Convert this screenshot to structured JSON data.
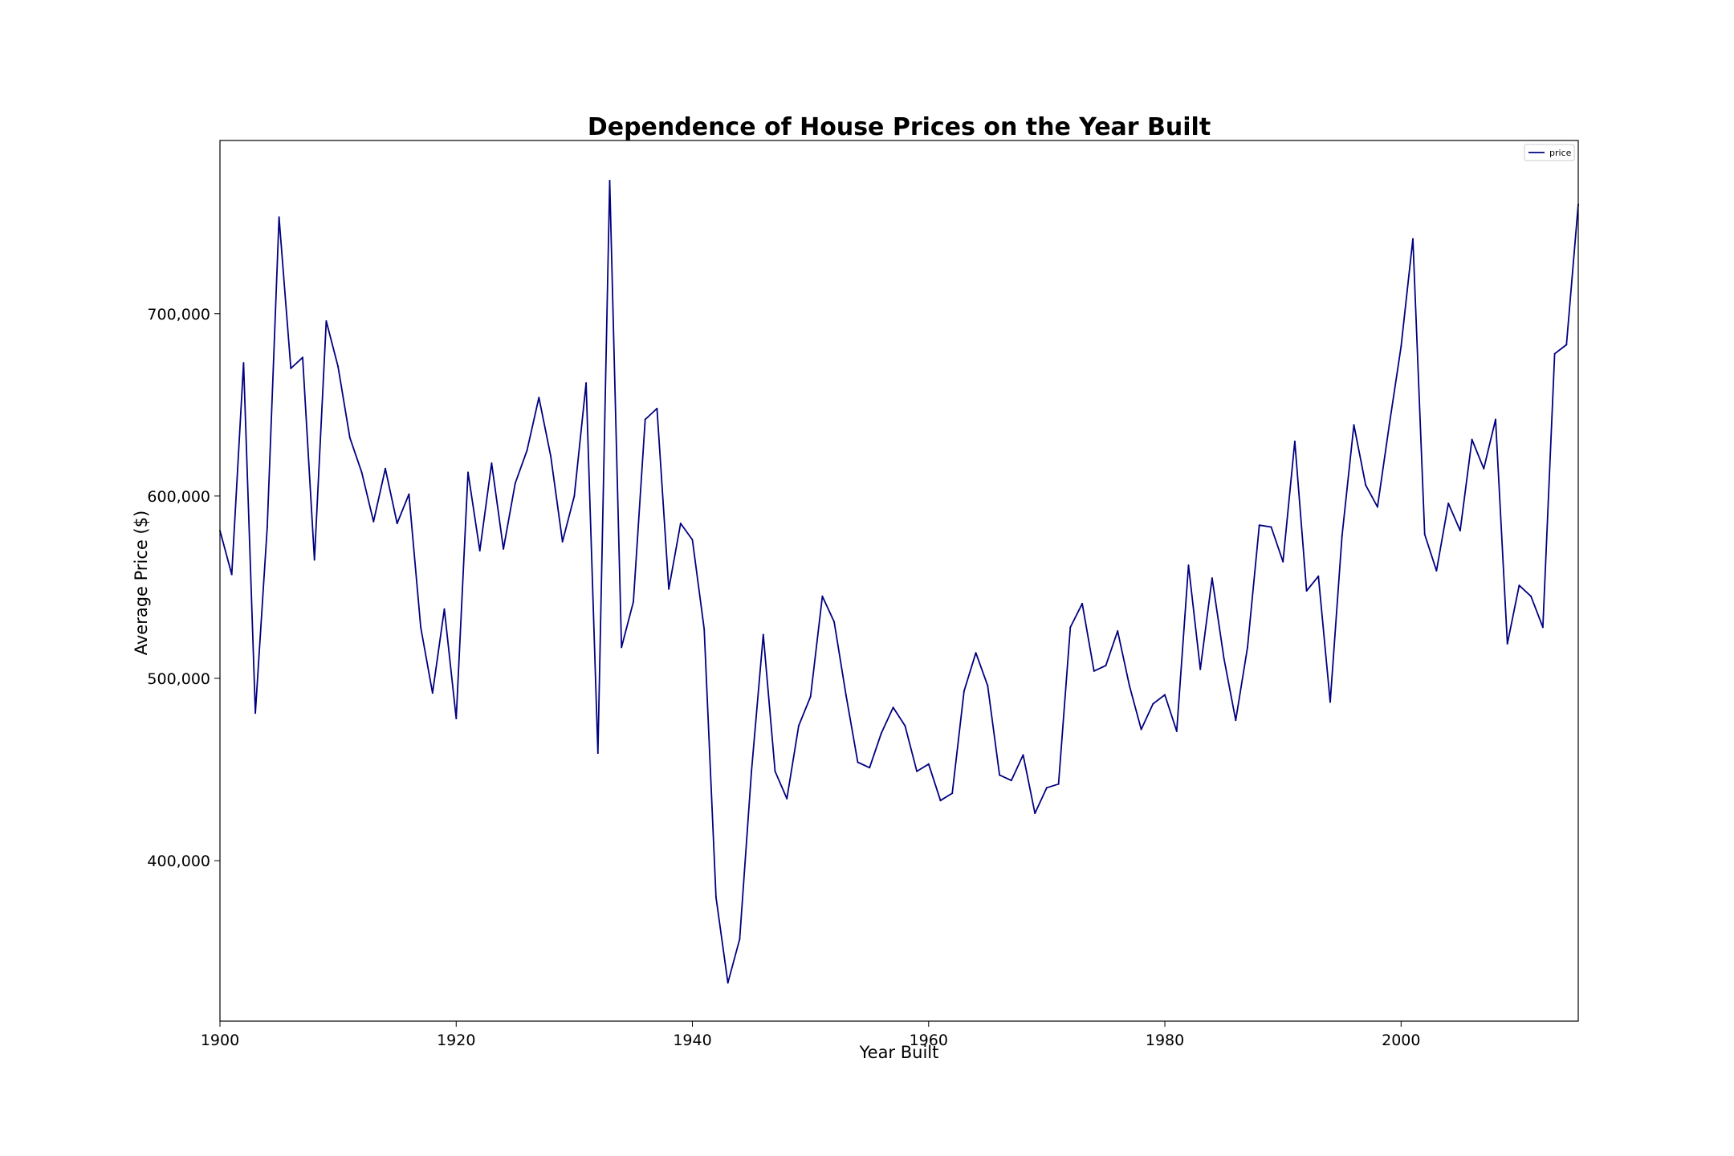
{
  "chart_data": {
    "type": "line",
    "title": "Dependence of House Prices on the Year Built",
    "xlabel": "Year Built",
    "ylabel": "Average Price ($)",
    "xlim": [
      1900,
      2015
    ],
    "ylim": [
      312000,
      795000
    ],
    "xticks": [
      1900,
      1920,
      1940,
      1960,
      1980,
      2000
    ],
    "xtick_labels": [
      "1900",
      "1920",
      "1940",
      "1960",
      "1980",
      "2000"
    ],
    "yticks": [
      400000,
      500000,
      600000,
      700000
    ],
    "ytick_labels": [
      "400,000",
      "500,000",
      "600,000",
      "700,000"
    ],
    "grid": false,
    "legend": {
      "position": "top-right",
      "entries": [
        "price"
      ]
    },
    "colors": {
      "line": "#000080"
    },
    "series": [
      {
        "name": "price",
        "x": [
          1900,
          1901,
          1902,
          1903,
          1904,
          1905,
          1906,
          1907,
          1908,
          1909,
          1910,
          1911,
          1912,
          1913,
          1914,
          1915,
          1916,
          1917,
          1918,
          1919,
          1920,
          1921,
          1922,
          1923,
          1924,
          1925,
          1926,
          1927,
          1928,
          1929,
          1930,
          1931,
          1932,
          1933,
          1934,
          1935,
          1936,
          1937,
          1938,
          1939,
          1940,
          1941,
          1942,
          1943,
          1944,
          1945,
          1946,
          1947,
          1948,
          1949,
          1950,
          1951,
          1952,
          1953,
          1954,
          1955,
          1956,
          1957,
          1958,
          1959,
          1960,
          1961,
          1962,
          1963,
          1964,
          1965,
          1966,
          1967,
          1968,
          1969,
          1970,
          1971,
          1972,
          1973,
          1974,
          1975,
          1976,
          1977,
          1978,
          1979,
          1980,
          1981,
          1982,
          1983,
          1984,
          1985,
          1986,
          1987,
          1988,
          1989,
          1990,
          1991,
          1992,
          1993,
          1994,
          1995,
          1996,
          1997,
          1998,
          1999,
          2000,
          2001,
          2002,
          2003,
          2004,
          2005,
          2006,
          2007,
          2008,
          2009,
          2010,
          2011,
          2012,
          2013,
          2014,
          2015
        ],
        "values": [
          581000,
          557000,
          673000,
          481000,
          583000,
          753000,
          670000,
          676000,
          565000,
          696000,
          671000,
          632000,
          613000,
          586000,
          615000,
          585000,
          601000,
          528000,
          492000,
          538000,
          478000,
          613000,
          570000,
          618000,
          571000,
          607000,
          625000,
          654000,
          622000,
          575000,
          600000,
          662000,
          459000,
          773000,
          517000,
          542000,
          642000,
          648000,
          549000,
          585000,
          576000,
          527000,
          380000,
          333000,
          357000,
          449000,
          524000,
          449000,
          434000,
          474000,
          490000,
          545000,
          531000,
          491000,
          454000,
          451000,
          470000,
          484000,
          474000,
          449000,
          453000,
          433000,
          437000,
          493000,
          514000,
          496000,
          447000,
          444000,
          458000,
          426000,
          440000,
          442000,
          528000,
          541000,
          504000,
          507000,
          526000,
          496000,
          472000,
          486000,
          491000,
          471000,
          562000,
          505000,
          555000,
          511000,
          477000,
          517000,
          584000,
          583000,
          564000,
          630000,
          548000,
          556000,
          487000,
          578000,
          639000,
          606000,
          594000,
          639000,
          682000,
          741000,
          579000,
          559000,
          596000,
          581000,
          631000,
          615000,
          642000,
          519000,
          551000,
          545000,
          528000,
          678000,
          683000,
          760000
        ]
      }
    ]
  }
}
